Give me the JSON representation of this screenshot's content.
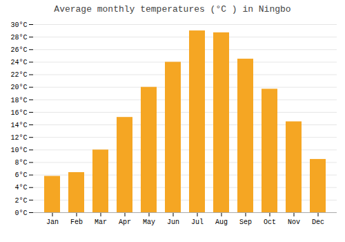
{
  "chart_data": {
    "type": "bar",
    "title": "Average monthly temperatures (°C ) in Ningbo",
    "categories": [
      "Jan",
      "Feb",
      "Mar",
      "Apr",
      "May",
      "Jun",
      "Jul",
      "Aug",
      "Sep",
      "Oct",
      "Nov",
      "Dec"
    ],
    "values": [
      5.8,
      6.4,
      10.0,
      15.2,
      20.0,
      24.0,
      29.0,
      28.7,
      24.5,
      19.7,
      14.5,
      8.5
    ],
    "color": "#F5A623",
    "ylim": [
      0,
      30
    ],
    "yticks": [
      {
        "value": 0,
        "label": "0°C"
      },
      {
        "value": 2,
        "label": "2°C"
      },
      {
        "value": 4,
        "label": "4°C"
      },
      {
        "value": 6,
        "label": "6°C"
      },
      {
        "value": 8,
        "label": "8°C"
      },
      {
        "value": 10,
        "label": "10°C"
      },
      {
        "value": 12,
        "label": "12°C"
      },
      {
        "value": 14,
        "label": "14°C"
      },
      {
        "value": 16,
        "label": "16°C"
      },
      {
        "value": 18,
        "label": "18°C"
      },
      {
        "value": 20,
        "label": "20°C"
      },
      {
        "value": 22,
        "label": "22°C"
      },
      {
        "value": 24,
        "label": "24°C"
      },
      {
        "value": 26,
        "label": "26°C"
      },
      {
        "value": 28,
        "label": "28°C"
      },
      {
        "value": 30,
        "label": "30°C"
      }
    ],
    "grid": true
  }
}
